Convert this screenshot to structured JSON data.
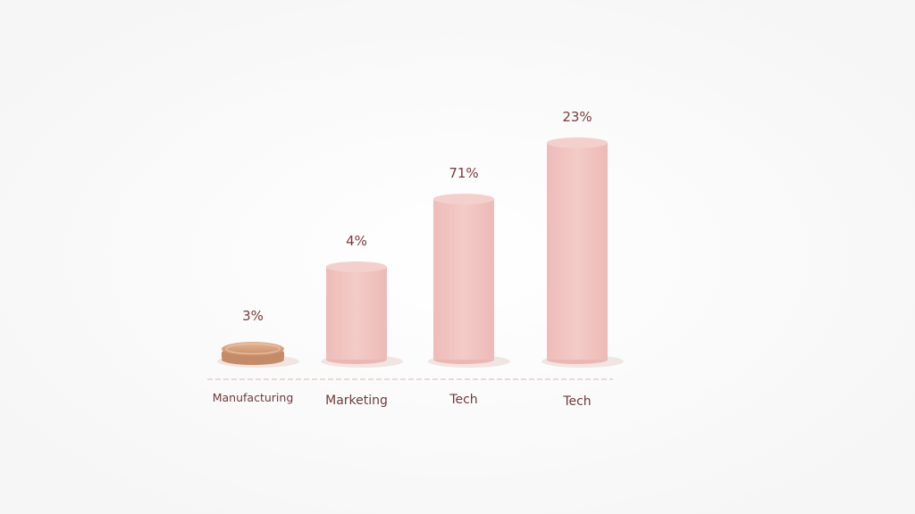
{
  "chart_data": {
    "type": "bar",
    "title": "",
    "xlabel": "",
    "ylabel": "",
    "categories": [
      "Manufacturing",
      "Marketing",
      "Tech",
      "Tech"
    ],
    "values": [
      3,
      4,
      71,
      23
    ],
    "value_labels": [
      "3%",
      "4%",
      "71%",
      "23%"
    ],
    "grid": false,
    "legend": "none",
    "colors": {
      "bar": "#f1c4c0",
      "bar_top": "#f4d0cc",
      "coin": "#d9a583",
      "coin_edge": "#c58a67",
      "baseline": "#e8d6d2",
      "label_text": "#7a3a3e",
      "background": "#fbfbfb"
    }
  }
}
